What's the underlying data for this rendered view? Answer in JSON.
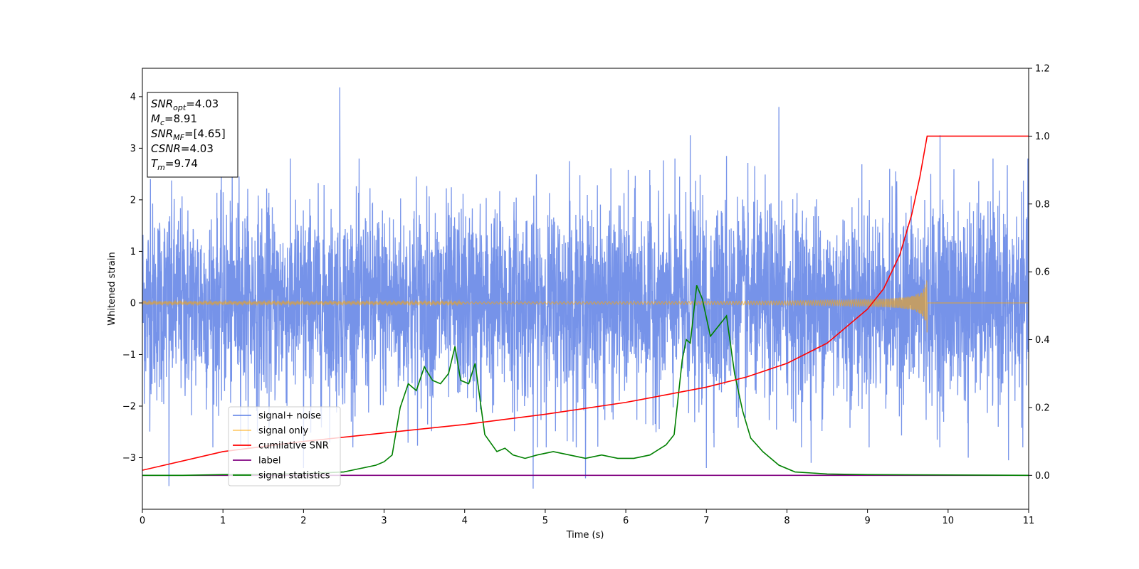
{
  "chart_data": {
    "type": "line",
    "xlabel": "Time (s)",
    "ylabel": "Whitened strain",
    "xlim": [
      0,
      11
    ],
    "ylim": [
      -4,
      4.55
    ],
    "y2lim": [
      -0.1,
      1.2
    ],
    "xticks": [
      0,
      1,
      2,
      3,
      4,
      5,
      6,
      7,
      8,
      9,
      10,
      11
    ],
    "yticks": [
      -3,
      -2,
      -1,
      0,
      1,
      2,
      3,
      4
    ],
    "y2ticks": [
      0.0,
      0.2,
      0.4,
      0.6,
      0.8,
      1.0,
      1.2
    ],
    "legend": {
      "location": "lower-left",
      "entries": [
        {
          "label": "signal+ noise",
          "color": "#4169e1"
        },
        {
          "label": "signal only",
          "color": "#ffa500"
        },
        {
          "label": "cumilative SNR",
          "color": "#ff0000"
        },
        {
          "label": "label",
          "color": "#800080"
        },
        {
          "label": "signal statistics",
          "color": "#008000"
        }
      ]
    },
    "annotation": [
      {
        "base": "SNR",
        "sub": "opt",
        "value": "=4.03"
      },
      {
        "base": "M",
        "sub": "c",
        "value": "=8.91"
      },
      {
        "base": "SNR",
        "sub": "MF",
        "value": "=[4.65]"
      },
      {
        "base": "CSNR",
        "sub": "",
        "value": "=4.03"
      },
      {
        "base": "T",
        "sub": "m",
        "value": "=9.74"
      }
    ],
    "series": [
      {
        "name": "signal+ noise",
        "axis": "left",
        "color": "#4169e1",
        "sigma": 0.95,
        "duration": 11,
        "spikes": [
          [
            0.1,
            2.4
          ],
          [
            0.33,
            -3.55
          ],
          [
            1.2,
            2.45
          ],
          [
            2.0,
            -3.2
          ],
          [
            2.45,
            4.18
          ],
          [
            3.4,
            2.45
          ],
          [
            4.85,
            -3.6
          ],
          [
            5.3,
            2.75
          ],
          [
            5.5,
            -3.4
          ],
          [
            6.8,
            3.25
          ],
          [
            7.0,
            -3.2
          ],
          [
            7.25,
            2.85
          ],
          [
            7.9,
            3.8
          ],
          [
            8.3,
            -3.1
          ],
          [
            9.35,
            2.55
          ],
          [
            9.9,
            3.25
          ],
          [
            10.25,
            -3.0
          ],
          [
            10.75,
            -3.05
          ]
        ]
      },
      {
        "name": "signal only",
        "axis": "left",
        "color": "#ffa500",
        "merger_time": 9.74,
        "peak_amplitude": 0.6
      },
      {
        "name": "cumilative SNR",
        "axis": "right",
        "color": "#ff0000",
        "x": [
          0,
          1,
          2,
          3,
          4,
          5,
          6,
          7,
          7.5,
          8,
          8.5,
          9,
          9.2,
          9.4,
          9.55,
          9.65,
          9.74,
          11
        ],
        "y": [
          0.015,
          0.07,
          0.1,
          0.125,
          0.15,
          0.18,
          0.215,
          0.26,
          0.29,
          0.33,
          0.39,
          0.49,
          0.55,
          0.65,
          0.77,
          0.88,
          1.0,
          1.0
        ]
      },
      {
        "name": "label",
        "axis": "right",
        "color": "#800080",
        "x": [
          0,
          11
        ],
        "y": [
          0.0,
          0.0
        ]
      },
      {
        "name": "signal statistics",
        "axis": "right",
        "color": "#008000",
        "x": [
          0,
          0.5,
          1.0,
          1.5,
          2.0,
          2.5,
          2.7,
          2.9,
          3.0,
          3.1,
          3.2,
          3.3,
          3.4,
          3.5,
          3.6,
          3.7,
          3.8,
          3.88,
          3.95,
          4.05,
          4.13,
          4.25,
          4.4,
          4.5,
          4.6,
          4.75,
          4.9,
          5.1,
          5.3,
          5.5,
          5.7,
          5.9,
          6.1,
          6.3,
          6.5,
          6.6,
          6.7,
          6.75,
          6.8,
          6.88,
          6.95,
          7.05,
          7.15,
          7.25,
          7.35,
          7.45,
          7.55,
          7.7,
          7.9,
          8.1,
          8.5,
          9.0,
          11
        ],
        "y": [
          0.0,
          0.0,
          0.002,
          0.003,
          0.005,
          0.01,
          0.02,
          0.03,
          0.04,
          0.06,
          0.2,
          0.27,
          0.25,
          0.32,
          0.28,
          0.27,
          0.3,
          0.38,
          0.28,
          0.27,
          0.33,
          0.12,
          0.07,
          0.08,
          0.06,
          0.05,
          0.06,
          0.07,
          0.06,
          0.05,
          0.06,
          0.05,
          0.05,
          0.06,
          0.09,
          0.12,
          0.34,
          0.4,
          0.39,
          0.56,
          0.52,
          0.41,
          0.44,
          0.47,
          0.3,
          0.19,
          0.11,
          0.07,
          0.03,
          0.01,
          0.004,
          0.002,
          0.0
        ]
      }
    ]
  }
}
